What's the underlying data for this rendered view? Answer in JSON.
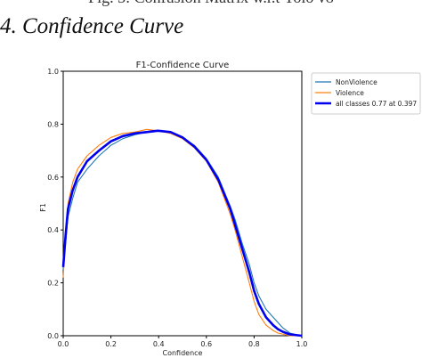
{
  "page": {
    "figure_caption_partial": "Fig. 3: Confusion Matrix w.r.t Yolo v8",
    "section_heading": "4.  Confidence Curve"
  },
  "chart_data": {
    "type": "line",
    "title": "F1-Confidence Curve",
    "xlabel": "Confidence",
    "ylabel": "F1",
    "xlim": [
      0.0,
      1.0
    ],
    "ylim": [
      0.0,
      1.0
    ],
    "xticks": [
      "0.0",
      "0.2",
      "0.4",
      "0.6",
      "0.8",
      "1.0"
    ],
    "yticks": [
      "0.0",
      "0.2",
      "0.4",
      "0.6",
      "0.8",
      "1.0"
    ],
    "grid": false,
    "legend_placement": "outside-right",
    "series": [
      {
        "name": "NonViolence",
        "color": "#1f77b4",
        "x": [
          0.0,
          0.01,
          0.02,
          0.04,
          0.06,
          0.1,
          0.15,
          0.2,
          0.25,
          0.3,
          0.35,
          0.4,
          0.45,
          0.5,
          0.55,
          0.6,
          0.65,
          0.7,
          0.72,
          0.75,
          0.78,
          0.8,
          0.82,
          0.85,
          0.88,
          0.9,
          0.92,
          0.95,
          1.0
        ],
        "values": [
          0.25,
          0.35,
          0.45,
          0.52,
          0.58,
          0.63,
          0.68,
          0.72,
          0.745,
          0.76,
          0.77,
          0.775,
          0.77,
          0.75,
          0.72,
          0.67,
          0.6,
          0.49,
          0.44,
          0.35,
          0.27,
          0.2,
          0.15,
          0.1,
          0.07,
          0.05,
          0.03,
          0.01,
          0.0
        ]
      },
      {
        "name": "Violence",
        "color": "#ff7f0e",
        "x": [
          0.0,
          0.01,
          0.02,
          0.04,
          0.06,
          0.1,
          0.15,
          0.2,
          0.25,
          0.3,
          0.35,
          0.4,
          0.45,
          0.5,
          0.55,
          0.6,
          0.65,
          0.7,
          0.72,
          0.75,
          0.78,
          0.8,
          0.82,
          0.85,
          0.88,
          0.9,
          0.95,
          1.0
        ],
        "values": [
          0.22,
          0.38,
          0.5,
          0.58,
          0.63,
          0.68,
          0.72,
          0.75,
          0.765,
          0.77,
          0.78,
          0.775,
          0.765,
          0.745,
          0.71,
          0.66,
          0.58,
          0.46,
          0.4,
          0.3,
          0.2,
          0.13,
          0.08,
          0.04,
          0.02,
          0.01,
          0.0,
          0.0
        ]
      },
      {
        "name": "all classes 0.77 at 0.397",
        "color": "#0000ee",
        "bold": true,
        "x": [
          0.0,
          0.01,
          0.02,
          0.04,
          0.06,
          0.1,
          0.15,
          0.2,
          0.25,
          0.3,
          0.35,
          0.397,
          0.45,
          0.5,
          0.55,
          0.6,
          0.65,
          0.7,
          0.72,
          0.75,
          0.78,
          0.8,
          0.82,
          0.85,
          0.88,
          0.9,
          0.92,
          0.95,
          1.0
        ],
        "values": [
          0.26,
          0.38,
          0.48,
          0.55,
          0.6,
          0.66,
          0.7,
          0.735,
          0.755,
          0.765,
          0.77,
          0.775,
          0.77,
          0.75,
          0.715,
          0.665,
          0.59,
          0.48,
          0.42,
          0.33,
          0.24,
          0.17,
          0.12,
          0.07,
          0.04,
          0.025,
          0.015,
          0.005,
          0.0
        ]
      }
    ]
  }
}
